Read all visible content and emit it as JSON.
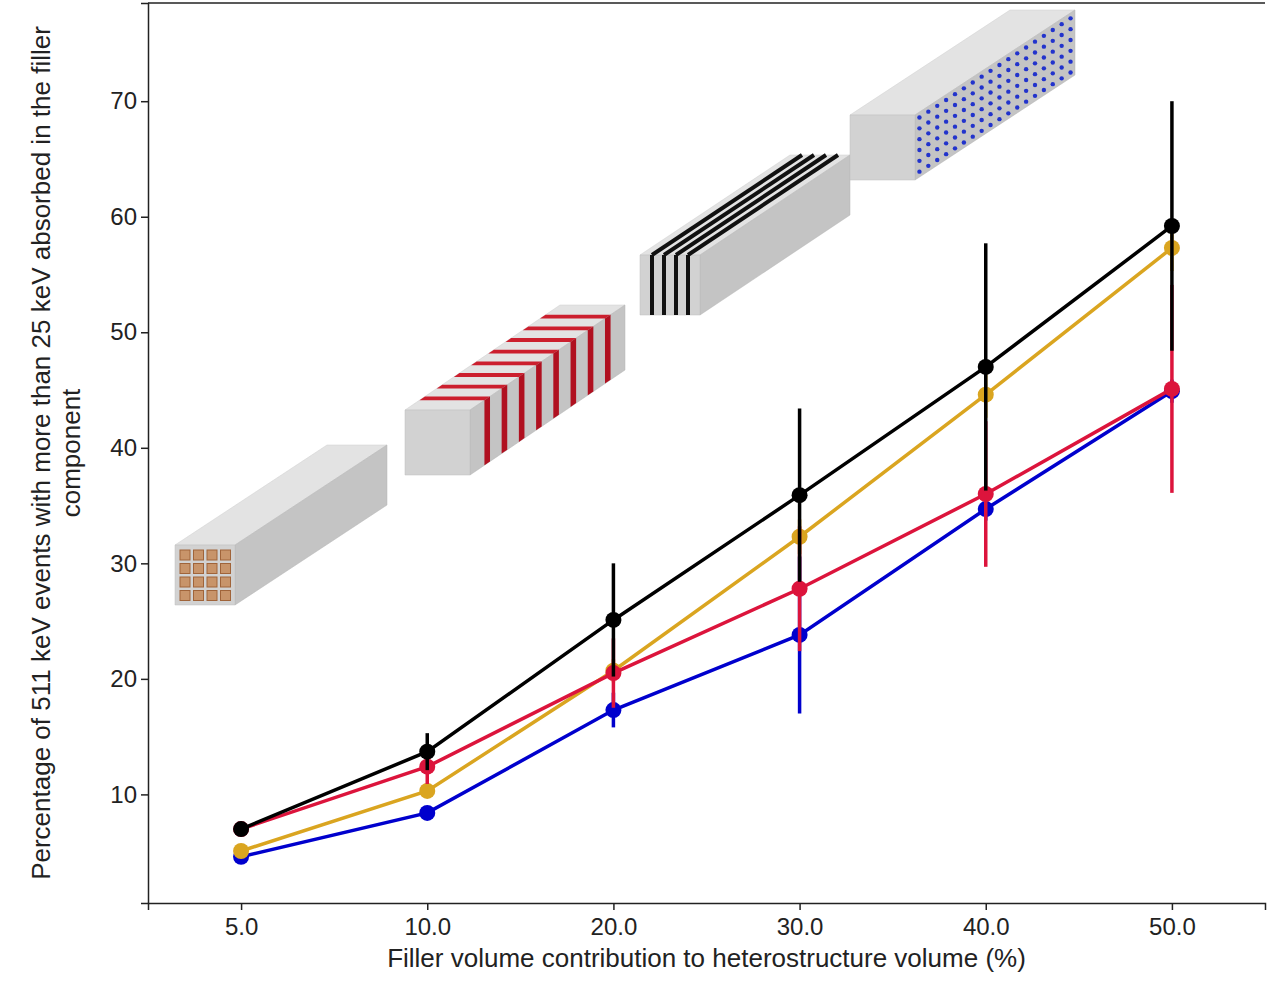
{
  "chart_data": {
    "type": "line",
    "x_label": "Filler volume contribution to heterostructure volume (%)",
    "y_label": "Percentage of 511 keV events with more than 25 keV absorbed in the filler component",
    "categories": [
      "5.0",
      "10.0",
      "20.0",
      "30.0",
      "40.0",
      "50.0"
    ],
    "ylim": [
      0.6,
      78.5
    ],
    "yticks": [
      10,
      20,
      30,
      40,
      50,
      60,
      70
    ],
    "marker": "circle",
    "line_style": "solid",
    "series": [
      {
        "color": "#0000cd",
        "values": [
          4.6,
          8.4,
          17.3,
          23.8,
          34.7,
          44.9
        ],
        "errors": [
          0.3,
          0.5,
          1.5,
          6.8,
          1,
          1
        ]
      },
      {
        "color": "#daa520",
        "values": [
          5.1,
          10.3,
          20.7,
          32.3,
          44.6,
          57.3
        ],
        "errors": [
          0.3,
          0.6,
          1,
          1.5,
          2,
          2
        ]
      },
      {
        "color": "#dc143c",
        "values": [
          7.0,
          12.4,
          20.5,
          27.8,
          36.0,
          45.1
        ],
        "errors": [
          0.3,
          1.5,
          3,
          5.4,
          6.3,
          9
        ]
      },
      {
        "color": "#000000",
        "values": [
          7.0,
          13.7,
          25.1,
          35.9,
          47.0,
          59.2
        ],
        "errors": [
          0,
          1.6,
          4.9,
          7.5,
          10.7,
          10.8
        ]
      }
    ]
  }
}
